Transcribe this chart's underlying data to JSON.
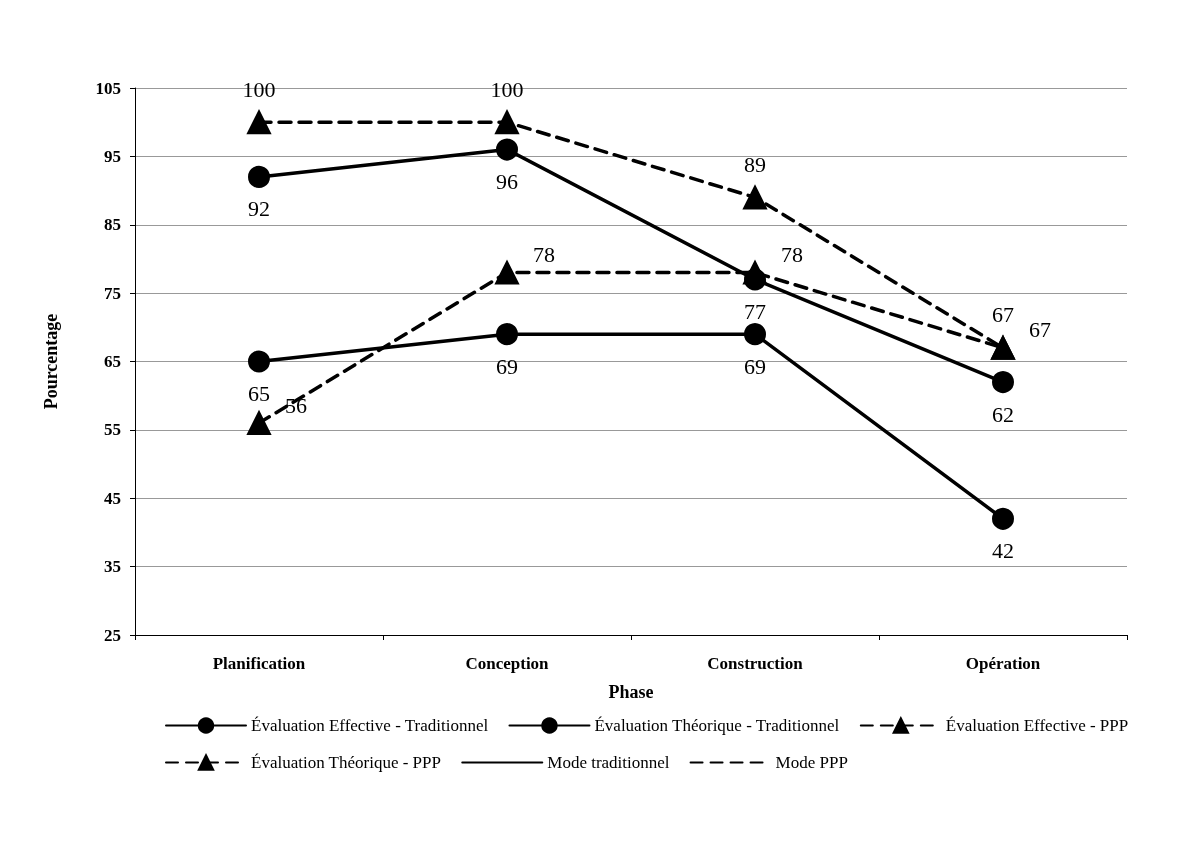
{
  "chart_data": {
    "type": "line",
    "xlabel": "Phase",
    "ylabel": "Pourcentage",
    "categories": [
      "Planification",
      "Conception",
      "Construction",
      "Opération"
    ],
    "series": [
      {
        "name": "Évaluation Effective - Traditionnel",
        "color": "#000000",
        "values": [
          65,
          69,
          69,
          42
        ],
        "marker": "circle",
        "line_style": "solid"
      },
      {
        "name": "Évaluation Théorique - Traditionnel",
        "color": "#000000",
        "values": [
          92,
          96,
          77,
          62
        ],
        "marker": "circle",
        "line_style": "solid"
      },
      {
        "name": "Évaluation Effective - PPP",
        "color": "#000000",
        "values": [
          56,
          78,
          78,
          67
        ],
        "marker": "triangle",
        "line_style": "dashed"
      },
      {
        "name": "Évaluation Théorique - PPP",
        "color": "#000000",
        "values": [
          100,
          100,
          89,
          67
        ],
        "marker": "triangle",
        "line_style": "dashed"
      },
      {
        "name": "Mode traditionnel",
        "color": "#000000",
        "values": [
          null,
          null,
          null,
          null
        ],
        "marker": "none",
        "line_style": "solid"
      },
      {
        "name": "Mode PPP",
        "color": "#000000",
        "values": [
          null,
          null,
          null,
          null
        ],
        "marker": "none",
        "line_style": "dashed"
      }
    ],
    "ylim": [
      25,
      105
    ],
    "yticks": [
      25,
      35,
      45,
      55,
      65,
      75,
      85,
      95,
      105
    ],
    "grid": "y",
    "legend": "bottom",
    "data_labels": true
  }
}
